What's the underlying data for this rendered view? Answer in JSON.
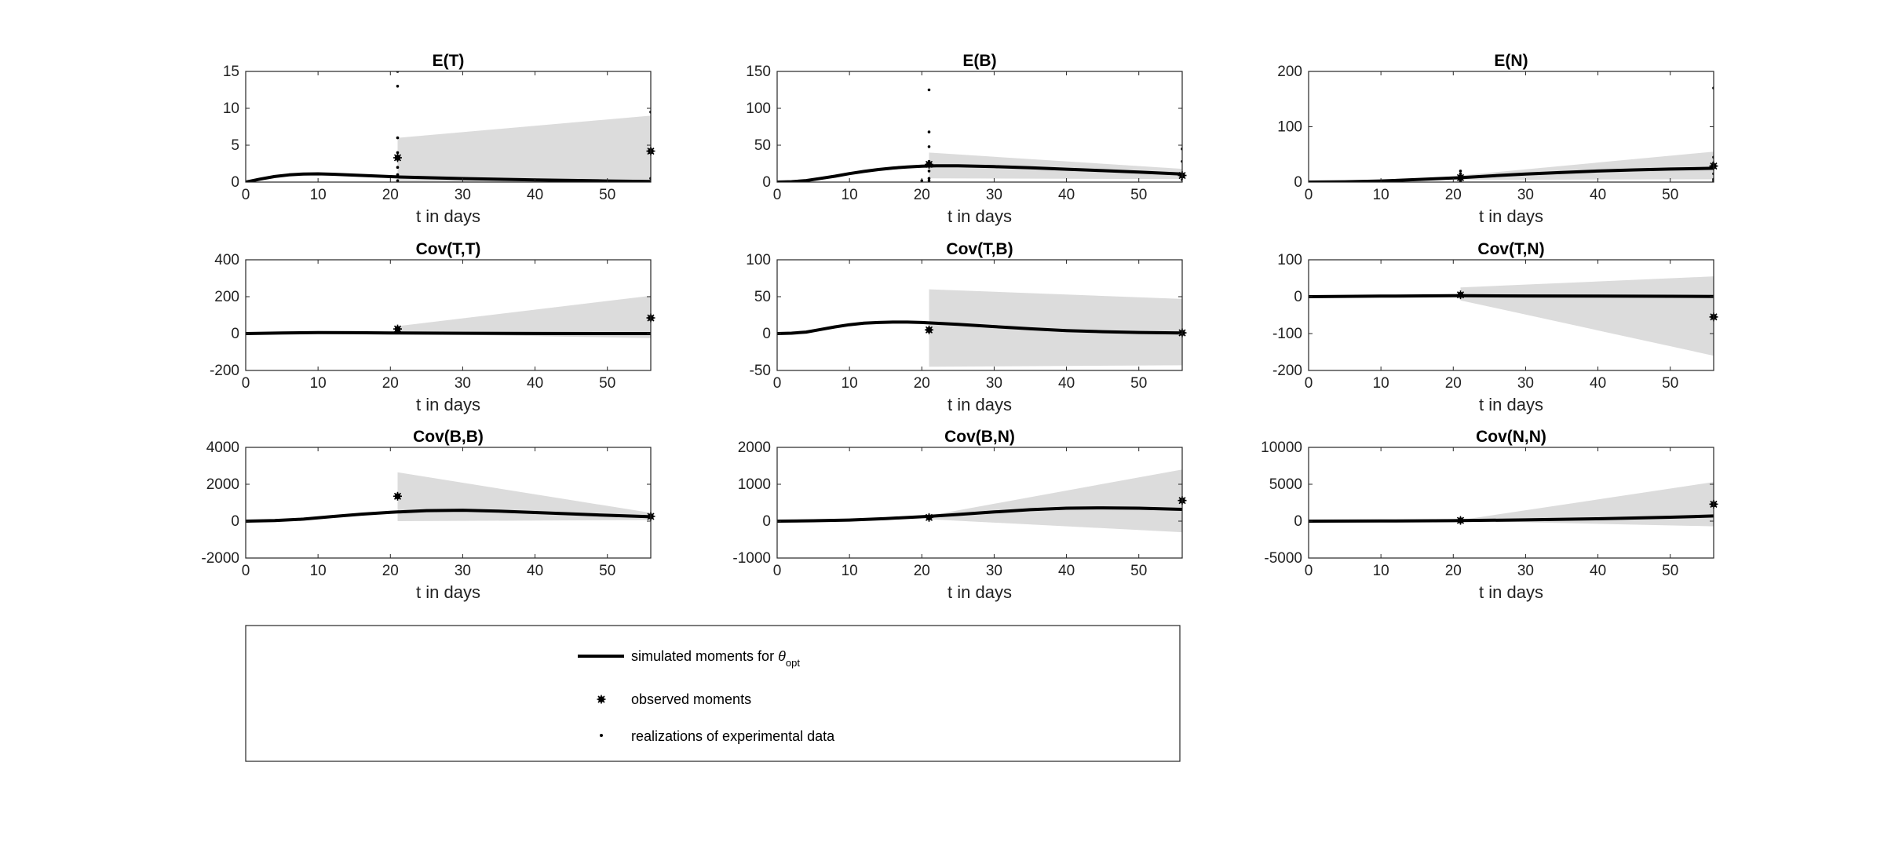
{
  "chart_data": [
    {
      "type": "line",
      "title": "E(T)",
      "xlabel": "t in days",
      "xlim": [
        0,
        56
      ],
      "xticks": [
        0,
        10,
        20,
        30,
        40,
        50
      ],
      "ylim": [
        0,
        15
      ],
      "yticks": [
        0,
        5,
        10,
        15
      ],
      "simulated": {
        "x": [
          0,
          2,
          4,
          6,
          8,
          10,
          12,
          14,
          16,
          18,
          20,
          21,
          25,
          30,
          35,
          40,
          45,
          50,
          56
        ],
        "y": [
          0,
          0.4,
          0.75,
          0.98,
          1.1,
          1.12,
          1.06,
          0.98,
          0.9,
          0.82,
          0.74,
          0.7,
          0.6,
          0.48,
          0.38,
          0.3,
          0.22,
          0.15,
          0.08
        ]
      },
      "band": {
        "x": [
          21,
          56
        ],
        "upper": [
          6,
          9
        ],
        "lower": [
          0,
          0
        ]
      },
      "observed": {
        "x": [
          21,
          56
        ],
        "y": [
          3.3,
          4.2
        ]
      },
      "realizations": [
        [
          21,
          15
        ],
        [
          21,
          13
        ],
        [
          21,
          6
        ],
        [
          21,
          4
        ],
        [
          21,
          3.5
        ],
        [
          21,
          2
        ],
        [
          21,
          1
        ],
        [
          21,
          0.2
        ],
        [
          56,
          9.5
        ],
        [
          56,
          4
        ],
        [
          56,
          0.5
        ]
      ]
    },
    {
      "type": "line",
      "title": "E(B)",
      "xlabel": "t in days",
      "xlim": [
        0,
        56
      ],
      "xticks": [
        0,
        10,
        20,
        30,
        40,
        50
      ],
      "ylim": [
        0,
        150
      ],
      "yticks": [
        0,
        50,
        100,
        150
      ],
      "simulated": {
        "x": [
          0,
          2,
          4,
          6,
          8,
          10,
          12,
          14,
          16,
          18,
          20,
          21,
          22,
          25,
          30,
          35,
          40,
          45,
          50,
          56
        ],
        "y": [
          0,
          0.5,
          2,
          5,
          8,
          11.5,
          14.5,
          17,
          19,
          20.5,
          21.5,
          21.8,
          22,
          22,
          21,
          19.5,
          17.5,
          15.5,
          13.5,
          11
        ]
      },
      "band": {
        "x": [
          21,
          56
        ],
        "upper": [
          40,
          18
        ],
        "lower": [
          5,
          4
        ]
      },
      "observed": {
        "x": [
          21,
          56
        ],
        "y": [
          24,
          9
        ]
      },
      "realizations": [
        [
          21,
          125
        ],
        [
          21,
          68
        ],
        [
          21,
          48
        ],
        [
          21,
          28
        ],
        [
          21,
          15
        ],
        [
          21,
          5
        ],
        [
          21,
          2
        ],
        [
          20,
          2
        ],
        [
          56,
          45
        ],
        [
          56,
          28
        ],
        [
          56,
          10
        ],
        [
          56,
          3
        ]
      ]
    },
    {
      "type": "line",
      "title": "E(N)",
      "xlabel": "t in days",
      "xlim": [
        0,
        56
      ],
      "xticks": [
        0,
        10,
        20,
        30,
        40,
        50
      ],
      "ylim": [
        0,
        200
      ],
      "yticks": [
        0,
        100,
        200
      ],
      "simulated": {
        "x": [
          0,
          5,
          10,
          15,
          20,
          21,
          25,
          30,
          35,
          40,
          45,
          50,
          56
        ],
        "y": [
          0,
          0.5,
          2,
          4.5,
          7.5,
          8,
          11,
          14.5,
          17.5,
          20,
          22,
          23.5,
          25
        ]
      },
      "band": {
        "x": [
          21,
          56
        ],
        "upper": [
          12,
          55
        ],
        "lower": [
          4,
          5
        ]
      },
      "observed": {
        "x": [
          21,
          56
        ],
        "y": [
          8,
          29
        ]
      },
      "realizations": [
        [
          21,
          20
        ],
        [
          21,
          15
        ],
        [
          21,
          10
        ],
        [
          21,
          5
        ],
        [
          21,
          2
        ],
        [
          56,
          170
        ],
        [
          56,
          45
        ],
        [
          56,
          35
        ],
        [
          56,
          25
        ],
        [
          56,
          15
        ],
        [
          56,
          5
        ],
        [
          56,
          2
        ]
      ]
    },
    {
      "type": "line",
      "title": "Cov(T,T)",
      "xlabel": "t in days",
      "xlim": [
        0,
        56
      ],
      "xticks": [
        0,
        10,
        20,
        30,
        40,
        50
      ],
      "ylim": [
        -200,
        400
      ],
      "yticks": [
        -200,
        0,
        200,
        400
      ],
      "simulated": {
        "x": [
          0,
          5,
          10,
          15,
          20,
          21,
          30,
          40,
          50,
          56
        ],
        "y": [
          0,
          3,
          5,
          4.5,
          3.5,
          3,
          1.5,
          0.5,
          0.2,
          0.1
        ]
      },
      "band": {
        "x": [
          21,
          56
        ],
        "upper": [
          40,
          205
        ],
        "lower": [
          0,
          -25
        ]
      },
      "observed": {
        "x": [
          21,
          56
        ],
        "y": [
          25,
          85
        ]
      },
      "realizations": []
    },
    {
      "type": "line",
      "title": "Cov(T,B)",
      "xlabel": "t in days",
      "xlim": [
        0,
        56
      ],
      "xticks": [
        0,
        10,
        20,
        30,
        40,
        50
      ],
      "ylim": [
        -50,
        100
      ],
      "yticks": [
        -50,
        0,
        50,
        100
      ],
      "simulated": {
        "x": [
          0,
          2,
          4,
          6,
          8,
          10,
          12,
          14,
          16,
          18,
          20,
          21,
          25,
          30,
          35,
          40,
          45,
          50,
          56
        ],
        "y": [
          0,
          0.5,
          2,
          5.5,
          9,
          12,
          14,
          15,
          15.5,
          15.5,
          15,
          14.5,
          12.5,
          9.5,
          6.5,
          4,
          2.5,
          1.5,
          0.8
        ]
      },
      "band": {
        "x": [
          21,
          56
        ],
        "upper": [
          60,
          47
        ],
        "lower": [
          -45,
          -43
        ]
      },
      "observed": {
        "x": [
          21,
          56
        ],
        "y": [
          5,
          1
        ]
      },
      "realizations": []
    },
    {
      "type": "line",
      "title": "Cov(T,N)",
      "xlabel": "t in days",
      "xlim": [
        0,
        56
      ],
      "xticks": [
        0,
        10,
        20,
        30,
        40,
        50
      ],
      "ylim": [
        -200,
        100
      ],
      "yticks": [
        -200,
        -100,
        0,
        100
      ],
      "simulated": {
        "x": [
          0,
          10,
          20,
          21,
          30,
          40,
          50,
          56
        ],
        "y": [
          0,
          1.5,
          2.5,
          2.5,
          2,
          1.5,
          1,
          0.5
        ]
      },
      "band": {
        "x": [
          21,
          56
        ],
        "upper": [
          25,
          55
        ],
        "lower": [
          -10,
          -160
        ]
      },
      "observed": {
        "x": [
          21,
          56
        ],
        "y": [
          5,
          -55
        ]
      },
      "realizations": []
    },
    {
      "type": "line",
      "title": "Cov(B,B)",
      "xlabel": "t in days",
      "xlim": [
        0,
        56
      ],
      "xticks": [
        0,
        10,
        20,
        30,
        40,
        50
      ],
      "ylim": [
        -2000,
        4000
      ],
      "yticks": [
        -2000,
        0,
        2000,
        4000
      ],
      "simulated": {
        "x": [
          0,
          4,
          8,
          12,
          16,
          20,
          21,
          25,
          30,
          35,
          40,
          45,
          50,
          56
        ],
        "y": [
          0,
          30,
          110,
          250,
          380,
          480,
          500,
          570,
          590,
          540,
          470,
          390,
          320,
          240
        ]
      },
      "band": {
        "x": [
          21,
          56
        ],
        "upper": [
          2650,
          450
        ],
        "lower": [
          0,
          60
        ]
      },
      "observed": {
        "x": [
          21,
          56
        ],
        "y": [
          1350,
          260
        ]
      },
      "realizations": []
    },
    {
      "type": "line",
      "title": "Cov(B,N)",
      "xlabel": "t in days",
      "xlim": [
        0,
        56
      ],
      "xticks": [
        0,
        10,
        20,
        30,
        40,
        50
      ],
      "ylim": [
        -1000,
        2000
      ],
      "yticks": [
        -1000,
        0,
        1000,
        2000
      ],
      "simulated": {
        "x": [
          0,
          5,
          10,
          15,
          20,
          21,
          25,
          30,
          35,
          40,
          45,
          50,
          56
        ],
        "y": [
          0,
          10,
          30,
          70,
          120,
          130,
          180,
          250,
          310,
          350,
          360,
          350,
          320
        ]
      },
      "band": {
        "x": [
          21,
          56
        ],
        "upper": [
          150,
          1400
        ],
        "lower": [
          50,
          -300
        ]
      },
      "observed": {
        "x": [
          21,
          56
        ],
        "y": [
          100,
          560
        ]
      },
      "realizations": []
    },
    {
      "type": "line",
      "title": "Cov(N,N)",
      "xlabel": "t in days",
      "xlim": [
        0,
        56
      ],
      "xticks": [
        0,
        10,
        20,
        30,
        40,
        50
      ],
      "ylim": [
        -5000,
        10000
      ],
      "yticks": [
        -5000,
        0,
        5000,
        10000
      ],
      "simulated": {
        "x": [
          0,
          10,
          20,
          21,
          30,
          40,
          50,
          56
        ],
        "y": [
          0,
          20,
          60,
          70,
          170,
          320,
          530,
          700
        ]
      },
      "band": {
        "x": [
          21,
          56
        ],
        "upper": [
          150,
          5300
        ],
        "lower": [
          40,
          -700
        ]
      },
      "observed": {
        "x": [
          21,
          56
        ],
        "y": [
          100,
          2300
        ]
      },
      "realizations": []
    }
  ],
  "legend": {
    "entries": [
      {
        "type": "line",
        "label": "simulated moments for",
        "symbol": "θ",
        "subscript": "opt"
      },
      {
        "type": "observed",
        "label": "observed moments"
      },
      {
        "type": "dot",
        "label": "realizations of experimental data"
      }
    ]
  },
  "colors": {
    "line": "#000000",
    "band": "#dcdcdc",
    "axes": "#262626"
  }
}
